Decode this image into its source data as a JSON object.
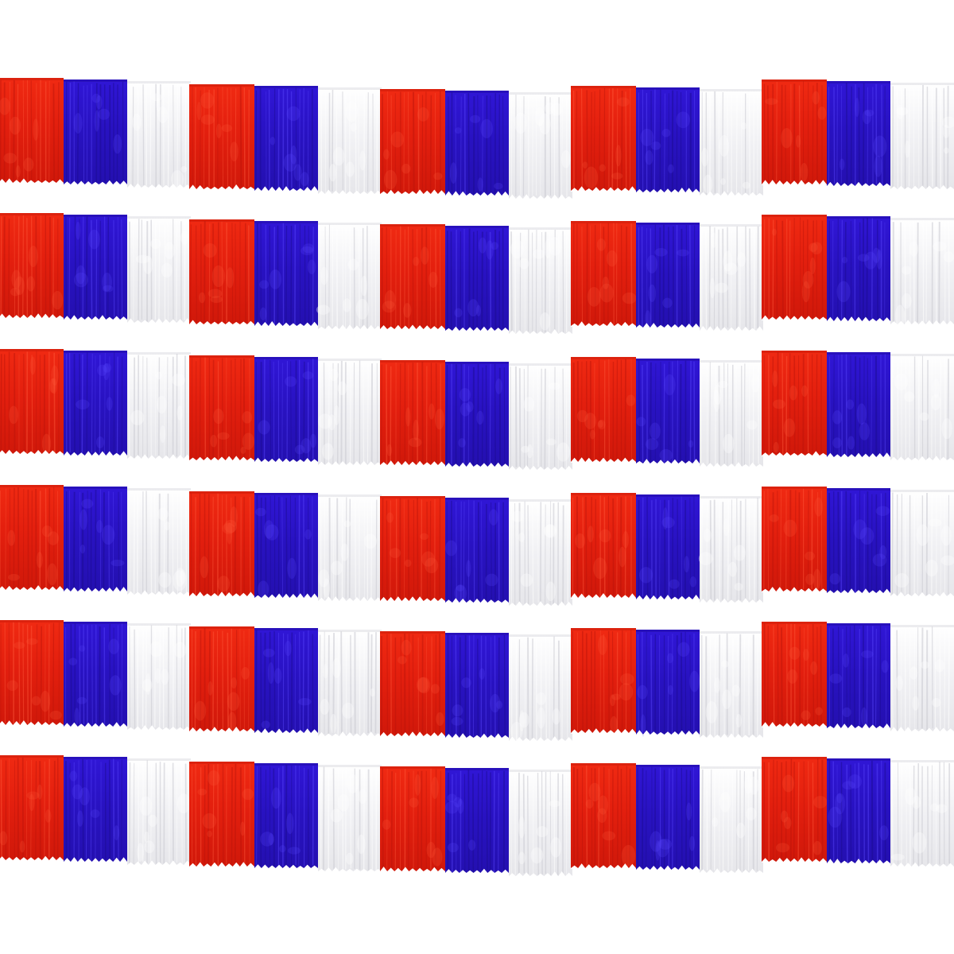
{
  "photo": {
    "subject": "tinsel-fringe-garland-strands",
    "strand_count": 6,
    "bundles_per_strand": 5,
    "panel_sequence": [
      "red",
      "blue",
      "white"
    ],
    "colors": {
      "background": "#ffffff",
      "red": "#e3210f",
      "red_dark": "#b8150a",
      "red_light": "#ff5a3c",
      "blue": "#2a12c4",
      "blue_dark": "#1a0a8c",
      "blue_light": "#5a48ff",
      "white": "#f4f4f6",
      "white_dark": "#c9c9d0",
      "white_light": "#ffffff"
    }
  }
}
